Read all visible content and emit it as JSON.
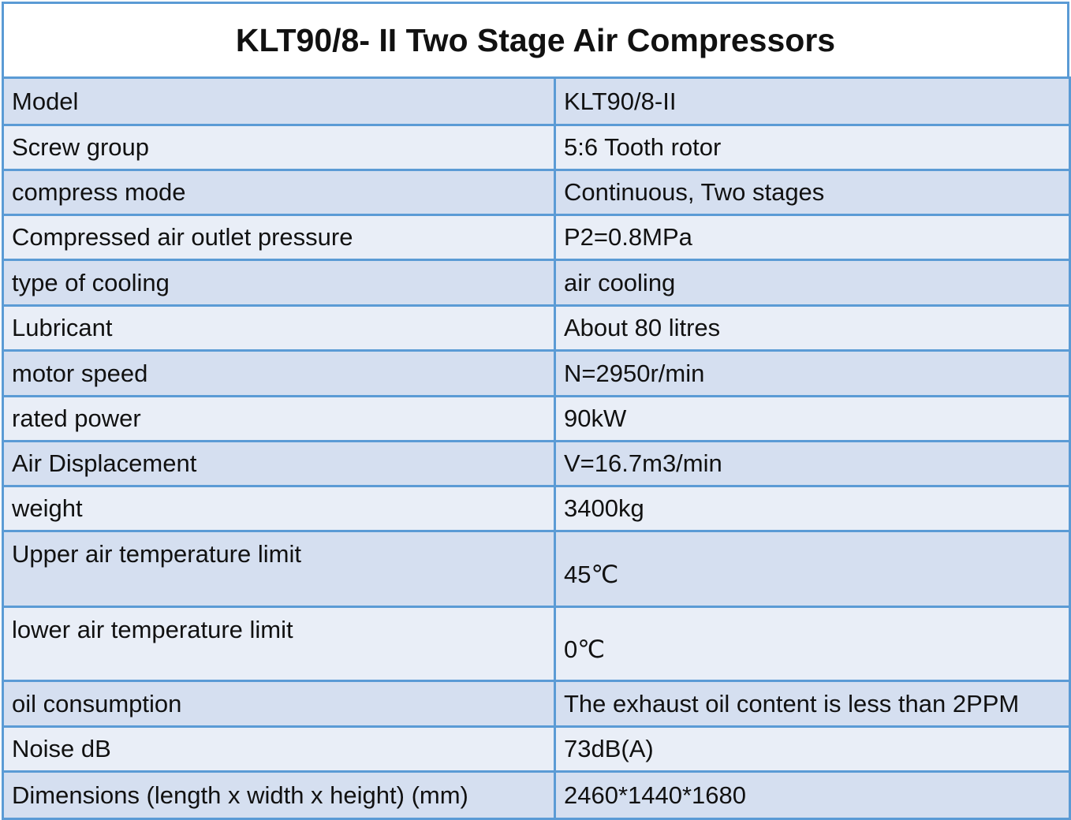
{
  "title": "KLT90/8- II Two Stage Air Compressors",
  "table": {
    "rows": [
      [
        "Model",
        "KLT90/8-II"
      ],
      [
        "Screw group",
        "5:6 Tooth rotor"
      ],
      [
        "compress mode",
        "Continuous, Two stages"
      ],
      [
        "Compressed air outlet pressure",
        "P2=0.8MPa"
      ],
      [
        "type of cooling",
        "air cooling"
      ],
      [
        "Lubricant",
        "About 80 litres"
      ],
      [
        "motor speed",
        "N=2950r/min"
      ],
      [
        "rated power",
        "90kW"
      ],
      [
        "Air Displacement",
        "V=16.7m3/min"
      ],
      [
        "weight",
        "3400kg"
      ],
      [
        "Upper air temperature limit",
        "45℃"
      ],
      [
        "lower air temperature limit",
        "0℃"
      ],
      [
        "oil consumption",
        "The exhaust oil content is less than 2PPM"
      ],
      [
        "Noise dB",
        "73dB(A)"
      ],
      [
        "Dimensions (length x width x height) (mm)",
        "2460*1440*1680"
      ]
    ]
  }
}
